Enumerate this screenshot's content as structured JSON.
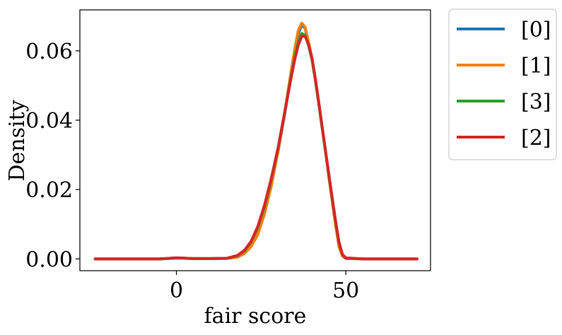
{
  "chart_data": {
    "type": "line",
    "title": "",
    "xlabel": "fair score",
    "ylabel": "Density",
    "xlim": [
      -28.5,
      75
    ],
    "ylim": [
      -0.0034,
      0.0718
    ],
    "xticks": [
      0,
      50
    ],
    "xtick_labels": [
      "0",
      "50"
    ],
    "yticks": [
      0.0,
      0.02,
      0.04,
      0.06
    ],
    "ytick_labels": [
      "0.00",
      "0.02",
      "0.04",
      "0.06"
    ],
    "grid": false,
    "legend_position": "outside-right-top",
    "series": [
      {
        "name": "[0]",
        "color": "#1f77b4",
        "points": [
          [
            -24,
            0
          ],
          [
            -5,
            0
          ],
          [
            0,
            0.0003
          ],
          [
            5,
            0.0001
          ],
          [
            10,
            0.0001
          ],
          [
            15,
            0.0002
          ],
          [
            18,
            0.0008
          ],
          [
            20,
            0.002
          ],
          [
            22,
            0.0045
          ],
          [
            24,
            0.0085
          ],
          [
            26,
            0.0145
          ],
          [
            28,
            0.022
          ],
          [
            30,
            0.031
          ],
          [
            32,
            0.042
          ],
          [
            34,
            0.054
          ],
          [
            35,
            0.06
          ],
          [
            36,
            0.065
          ],
          [
            37,
            0.0675
          ],
          [
            38,
            0.0665
          ],
          [
            39,
            0.062
          ],
          [
            40,
            0.058
          ],
          [
            41,
            0.052
          ],
          [
            42,
            0.045
          ],
          [
            43,
            0.038
          ],
          [
            44,
            0.031
          ],
          [
            45,
            0.024
          ],
          [
            46,
            0.017
          ],
          [
            47,
            0.01
          ],
          [
            48,
            0.004
          ],
          [
            49,
            0.001
          ],
          [
            50,
            0.0002
          ],
          [
            55,
            0
          ],
          [
            65,
            0
          ],
          [
            71,
            0
          ]
        ]
      },
      {
        "name": "[1]",
        "color": "#ff7f0e",
        "points": [
          [
            -24,
            0
          ],
          [
            -5,
            0
          ],
          [
            0,
            0.0002
          ],
          [
            5,
            0.0001
          ],
          [
            10,
            0.0001
          ],
          [
            15,
            0.0001
          ],
          [
            18,
            0.0005
          ],
          [
            20,
            0.0015
          ],
          [
            22,
            0.0035
          ],
          [
            24,
            0.007
          ],
          [
            26,
            0.013
          ],
          [
            28,
            0.021
          ],
          [
            30,
            0.031
          ],
          [
            32,
            0.0425
          ],
          [
            34,
            0.055
          ],
          [
            35,
            0.061
          ],
          [
            36,
            0.066
          ],
          [
            37,
            0.068
          ],
          [
            38,
            0.0668
          ],
          [
            39,
            0.0625
          ],
          [
            40,
            0.058
          ],
          [
            41,
            0.052
          ],
          [
            42,
            0.045
          ],
          [
            43,
            0.038
          ],
          [
            44,
            0.031
          ],
          [
            45,
            0.0235
          ],
          [
            46,
            0.0165
          ],
          [
            47,
            0.0095
          ],
          [
            48,
            0.0035
          ],
          [
            49,
            0.0008
          ],
          [
            50,
            0.0001
          ],
          [
            55,
            0
          ],
          [
            65,
            0
          ],
          [
            71,
            0
          ]
        ]
      },
      {
        "name": "[3]",
        "color": "#2ca02c",
        "points": [
          [
            -24,
            0
          ],
          [
            -5,
            0
          ],
          [
            0,
            0.0003
          ],
          [
            5,
            0.0001
          ],
          [
            10,
            0.0001
          ],
          [
            15,
            0.0002
          ],
          [
            18,
            0.0009
          ],
          [
            20,
            0.0022
          ],
          [
            22,
            0.0048
          ],
          [
            24,
            0.009
          ],
          [
            26,
            0.015
          ],
          [
            28,
            0.0228
          ],
          [
            30,
            0.0318
          ],
          [
            32,
            0.0425
          ],
          [
            34,
            0.0535
          ],
          [
            35,
            0.0585
          ],
          [
            36,
            0.0628
          ],
          [
            37,
            0.065
          ],
          [
            38,
            0.0645
          ],
          [
            39,
            0.0615
          ],
          [
            40,
            0.0575
          ],
          [
            41,
            0.0515
          ],
          [
            42,
            0.0448
          ],
          [
            43,
            0.0378
          ],
          [
            44,
            0.031
          ],
          [
            45,
            0.024
          ],
          [
            46,
            0.0172
          ],
          [
            47,
            0.0105
          ],
          [
            48,
            0.0045
          ],
          [
            49,
            0.0012
          ],
          [
            50,
            0.0002
          ],
          [
            55,
            0
          ],
          [
            65,
            0
          ],
          [
            71,
            0
          ]
        ]
      },
      {
        "name": "[2]",
        "color": "#d62728",
        "points": [
          [
            -24,
            0
          ],
          [
            -5,
            0
          ],
          [
            0,
            0.0003
          ],
          [
            5,
            0.0001
          ],
          [
            10,
            0.0001
          ],
          [
            15,
            0.0002
          ],
          [
            18,
            0.001
          ],
          [
            20,
            0.0024
          ],
          [
            22,
            0.005
          ],
          [
            24,
            0.0093
          ],
          [
            26,
            0.0155
          ],
          [
            28,
            0.0232
          ],
          [
            30,
            0.032
          ],
          [
            32,
            0.0425
          ],
          [
            34,
            0.053
          ],
          [
            35,
            0.0578
          ],
          [
            36,
            0.0618
          ],
          [
            37,
            0.0642
          ],
          [
            38,
            0.0642
          ],
          [
            39,
            0.0618
          ],
          [
            40,
            0.0578
          ],
          [
            41,
            0.052
          ],
          [
            42,
            0.0452
          ],
          [
            43,
            0.0382
          ],
          [
            44,
            0.0312
          ],
          [
            45,
            0.0243
          ],
          [
            46,
            0.0175
          ],
          [
            47,
            0.0108
          ],
          [
            48,
            0.0048
          ],
          [
            49,
            0.0013
          ],
          [
            50,
            0.0003
          ],
          [
            55,
            0
          ],
          [
            65,
            0
          ],
          [
            71,
            0
          ]
        ]
      }
    ]
  }
}
